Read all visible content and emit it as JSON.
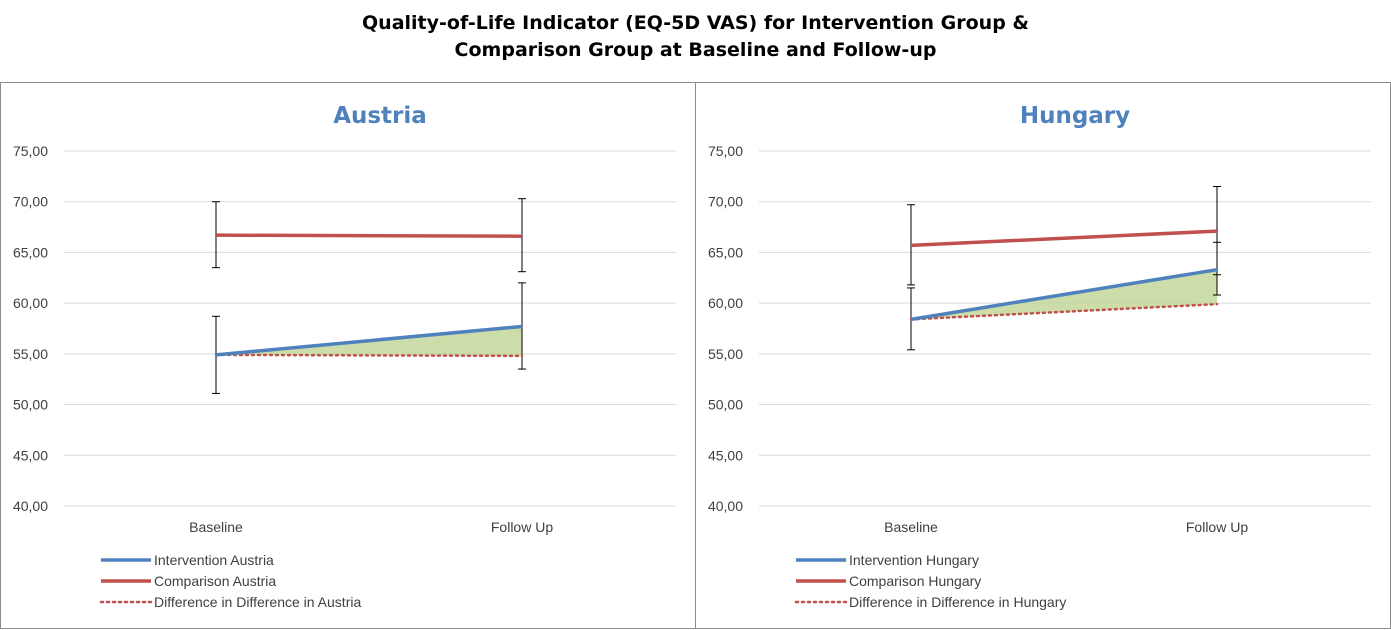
{
  "page_title": {
    "line1": "Quality-of-Life Indicator (EQ-5D VAS) for Intervention Group &",
    "line2": "Comparison Group at Baseline and Follow-up"
  },
  "chart_data": [
    {
      "type": "line",
      "title": "Austria",
      "categories": [
        "Baseline",
        "Follow Up"
      ],
      "y_ticks": [
        "40,00",
        "45,00",
        "50,00",
        "55,00",
        "60,00",
        "65,00",
        "70,00",
        "75,00"
      ],
      "ylim": [
        40,
        75
      ],
      "grid": true,
      "legend_position": "bottom-left",
      "series": [
        {
          "name": "Intervention Austria",
          "values": [
            54.9,
            57.7
          ],
          "error_low": [
            51.1,
            53.5
          ],
          "error_high": [
            58.7,
            62.0
          ],
          "color": "#4f81bd",
          "style": "solid"
        },
        {
          "name": "Comparison Austria",
          "values": [
            66.7,
            66.6
          ],
          "error_low": [
            63.5,
            63.1
          ],
          "error_high": [
            70.0,
            70.3
          ],
          "color": "#c0504d",
          "style": "solid"
        },
        {
          "name": "Difference in Difference in Austria",
          "values": [
            54.9,
            54.8
          ],
          "color": "#c0504d",
          "style": "dotted"
        }
      ],
      "shaded_area": {
        "between": [
          "Intervention Austria",
          "Difference in Difference in Austria"
        ],
        "color": "#c4d79b"
      }
    },
    {
      "type": "line",
      "title": "Hungary",
      "categories": [
        "Baseline",
        "Follow Up"
      ],
      "y_ticks": [
        "40,00",
        "45,00",
        "50,00",
        "55,00",
        "60,00",
        "65,00",
        "70,00",
        "75,00"
      ],
      "ylim": [
        40,
        75
      ],
      "grid": true,
      "legend_position": "bottom-left",
      "series": [
        {
          "name": "Intervention Hungary",
          "values": [
            58.4,
            63.3
          ],
          "error_low": [
            55.4,
            60.8
          ],
          "error_high": [
            61.5,
            66.0
          ],
          "color": "#4f81bd",
          "style": "solid"
        },
        {
          "name": "Comparison Hungary",
          "values": [
            65.7,
            67.1
          ],
          "error_low": [
            61.8,
            62.8
          ],
          "error_high": [
            69.7,
            71.5
          ],
          "color": "#c0504d",
          "style": "solid"
        },
        {
          "name": "Difference in Difference in Hungary",
          "values": [
            58.4,
            59.9
          ],
          "color": "#c0504d",
          "style": "dotted"
        }
      ],
      "shaded_area": {
        "between": [
          "Intervention Hungary",
          "Difference in Difference in Hungary"
        ],
        "color": "#c4d79b"
      }
    }
  ]
}
